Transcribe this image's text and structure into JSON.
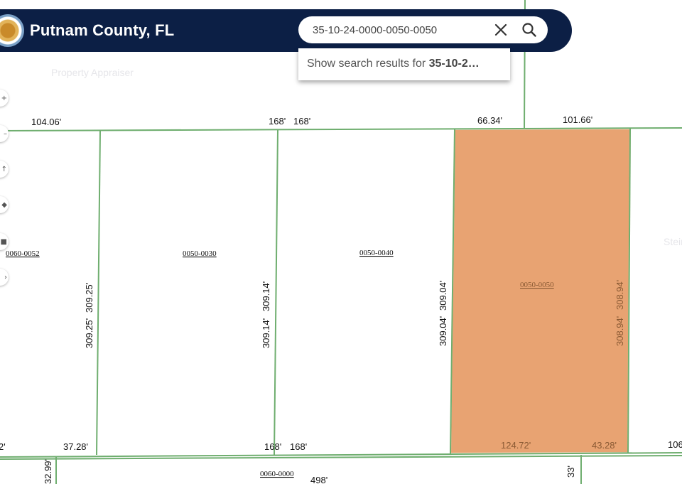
{
  "header": {
    "title": "Putnam County, FL",
    "subtitle": "Property Appraiser"
  },
  "search": {
    "value": "35-10-24-0000-0050-0050",
    "suggestion_prefix": "Show search results for ",
    "suggestion_bold": "35-10-2…"
  },
  "icons": {
    "clear": "close-icon",
    "search": "search-icon",
    "logo": "county-seal-icon"
  },
  "colors": {
    "header_bg": "#0c1f45",
    "selected_fill": "#e8a372",
    "parcel_line": "#6fae6f"
  },
  "map": {
    "parcels": [
      {
        "id": "0060-0052"
      },
      {
        "id": "0050-0030"
      },
      {
        "id": "0050-0040"
      },
      {
        "id": "0050-0050",
        "selected": true
      },
      {
        "id": "0060-0000"
      }
    ],
    "dimensions": {
      "top_a": "104.06'",
      "top_b": "168'",
      "top_c": "168'",
      "top_d": "66.34'",
      "top_e": "101.66'",
      "side_a1": "309.25'",
      "side_a2": "309.25'",
      "side_b1": "309.14'",
      "side_b2": "309.14'",
      "side_c1": "309.04'",
      "side_c2": "309.04'",
      "side_d1": "308.94'",
      "side_d2": "308.94'",
      "bot_a": "2'",
      "bot_b": "37.28'",
      "bot_c": "168'",
      "bot_d": "168'",
      "bot_e": "124.72'",
      "bot_f": "43.28'",
      "bot_g": "106",
      "low_a": "32.99'",
      "low_b": "498'",
      "low_c": "33'"
    },
    "edge_label": "Stein"
  }
}
